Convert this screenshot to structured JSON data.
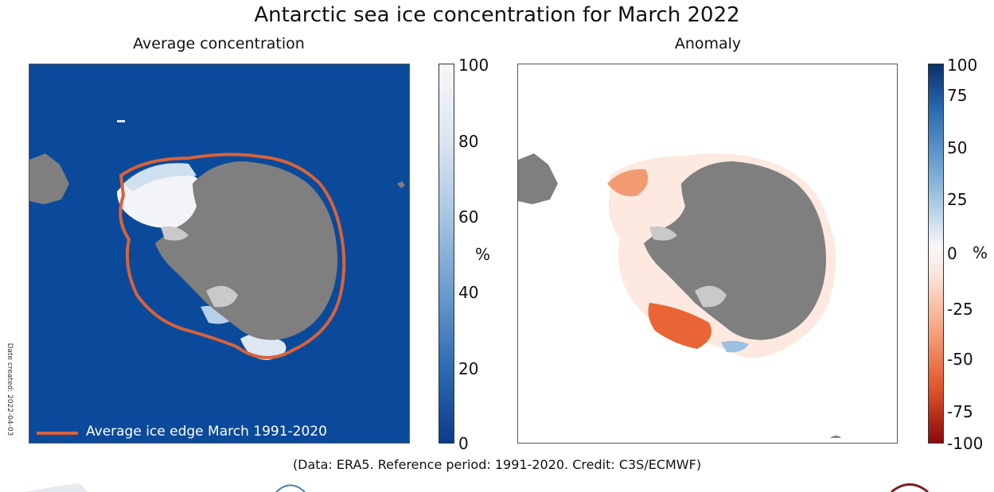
{
  "title": "Antarctic sea ice concentration for March 2022",
  "left_panel": {
    "subtitle": "Average concentration",
    "colorbar": {
      "ticks": [
        "100",
        "80",
        "60",
        "40",
        "20",
        "0"
      ],
      "unit": "%"
    },
    "legend_label": "Average ice edge March 1991-2020",
    "colors": {
      "ocean": "#0b4a9a",
      "land": "#7f7f7f",
      "ice_edge": "#d9623b"
    }
  },
  "right_panel": {
    "subtitle": "Anomaly",
    "colorbar": {
      "ticks": [
        "100",
        "75",
        "50",
        "25",
        "0",
        "-25",
        "-50",
        "-75",
        "-100"
      ],
      "unit": "%"
    },
    "colors": {
      "land": "#7f7f7f",
      "negative_anomaly": "#e4572e",
      "positive_anomaly": "#7fb0d8"
    }
  },
  "side_note": "Date created: 2022-04-03",
  "credit": "(Data: ERA5.  Reference period: 1991-2020.  Credit: C3S/ECMWF)"
}
